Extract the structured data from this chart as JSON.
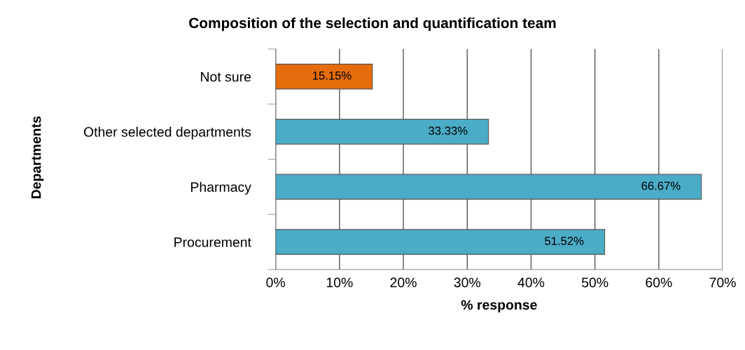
{
  "chart_data": {
    "type": "bar",
    "orientation": "horizontal",
    "title": "Composition of the selection and quantification team",
    "xlabel": "% response",
    "ylabel": "Departments",
    "categories": [
      "Not sure",
      "Other selected departments",
      "Pharmacy",
      "Procurement"
    ],
    "values": [
      15.15,
      33.33,
      66.67,
      51.52
    ],
    "colors": [
      "#e46c0a",
      "#4bacc6",
      "#4bacc6",
      "#4bacc6"
    ],
    "value_labels": [
      "15.15%",
      "33.33%",
      "66.67%",
      "51.52%"
    ],
    "xlim": [
      0,
      70
    ],
    "xticks": [
      {
        "value": 0,
        "label": "0%"
      },
      {
        "value": 10,
        "label": "10%"
      },
      {
        "value": 20,
        "label": "20%"
      },
      {
        "value": 30,
        "label": "30%"
      },
      {
        "value": 40,
        "label": "40%"
      },
      {
        "value": 50,
        "label": "50%"
      },
      {
        "value": 60,
        "label": "60%"
      },
      {
        "value": 70,
        "label": "70%"
      }
    ],
    "grid": "x"
  }
}
